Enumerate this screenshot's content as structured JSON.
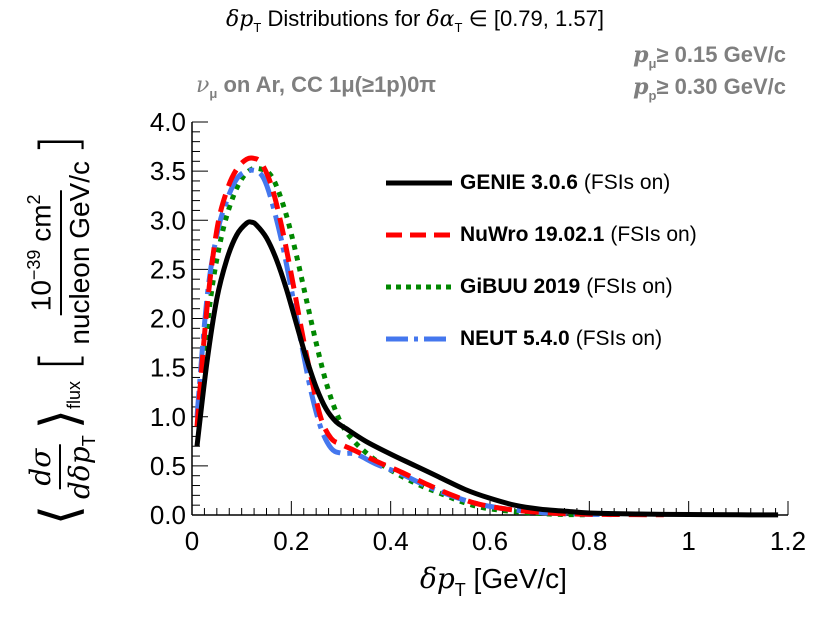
{
  "header": {
    "title_symbol": "δp",
    "title_subscript": "T",
    "title_text": " Distributions for ",
    "title_alpha_symbol": "δα",
    "title_alpha_subscript": "T",
    "title_range": " ∈  [0.79, 1.57]",
    "selection_nu": "ν",
    "selection_nu_sub": "μ",
    "selection_text": " on Ar, CC 1μ(≥1p)0π",
    "cut_mu_symbol": "p",
    "cut_mu_sub": "μ",
    "cut_mu_text": "≥ 0.15 GeV/c",
    "cut_p_symbol": "p",
    "cut_p_sub": "p",
    "cut_p_text": "≥ 0.30 GeV/c"
  },
  "chart_data": {
    "type": "line",
    "title": "δpT Distributions for δαT ∈ [0.79, 1.57]",
    "xlabel": "δpT [GeV/c]",
    "ylabel": "⟨dσ/dδpT⟩flux [10^-39 cm^2 / nucleon GeV/c]",
    "xlim": [
      0,
      1.2
    ],
    "ylim": [
      0,
      4.0
    ],
    "x_ticks": [
      "0",
      "0.2",
      "0.4",
      "0.6",
      "0.8",
      "1",
      "1.2"
    ],
    "y_ticks": [
      "0.0",
      "0.5",
      "1.0",
      "1.5",
      "2.0",
      "2.5",
      "3.0",
      "3.5",
      "4.0"
    ],
    "grid": false,
    "legend_position": "top-right",
    "series": [
      {
        "name": "GENIE 3.0.6",
        "suffix": "(FSIs on)",
        "color": "#000000",
        "style": "solid",
        "x": [
          0.01,
          0.03,
          0.05,
          0.07,
          0.09,
          0.11,
          0.12,
          0.13,
          0.15,
          0.17,
          0.19,
          0.21,
          0.23,
          0.25,
          0.27,
          0.29,
          0.31,
          0.35,
          0.4,
          0.45,
          0.5,
          0.55,
          0.6,
          0.65,
          0.7,
          0.75,
          0.8,
          0.9,
          1.0,
          1.1,
          1.18
        ],
        "y": [
          0.7,
          1.55,
          2.2,
          2.6,
          2.85,
          2.97,
          2.98,
          2.95,
          2.82,
          2.6,
          2.3,
          1.95,
          1.6,
          1.3,
          1.08,
          0.95,
          0.88,
          0.75,
          0.62,
          0.5,
          0.38,
          0.26,
          0.17,
          0.1,
          0.06,
          0.04,
          0.02,
          0.01,
          0.005,
          0.002,
          0.001
        ]
      },
      {
        "name": "NuWro 19.02.1",
        "suffix": "(FSIs on)",
        "color": "#ff0000",
        "style": "dashed",
        "x": [
          0.01,
          0.03,
          0.05,
          0.07,
          0.09,
          0.11,
          0.125,
          0.14,
          0.16,
          0.18,
          0.2,
          0.22,
          0.24,
          0.26,
          0.28,
          0.3,
          0.33,
          0.37,
          0.42,
          0.47,
          0.52,
          0.57,
          0.62,
          0.67,
          0.72,
          0.77,
          0.85,
          0.95
        ],
        "y": [
          0.9,
          2.1,
          2.9,
          3.3,
          3.52,
          3.62,
          3.63,
          3.58,
          3.35,
          2.95,
          2.45,
          1.9,
          1.4,
          0.98,
          0.78,
          0.72,
          0.65,
          0.55,
          0.44,
          0.32,
          0.21,
          0.12,
          0.07,
          0.04,
          0.02,
          0.01,
          0.005,
          0.002
        ]
      },
      {
        "name": "GiBUU 2019",
        "suffix": "(FSIs on)",
        "color": "#008800",
        "style": "dotted",
        "x": [
          0.02,
          0.04,
          0.06,
          0.08,
          0.1,
          0.12,
          0.14,
          0.155,
          0.17,
          0.19,
          0.21,
          0.23,
          0.25,
          0.27,
          0.29,
          0.31,
          0.34,
          0.38,
          0.42,
          0.46,
          0.5,
          0.54,
          0.58,
          0.62,
          0.66,
          0.7,
          0.75,
          0.8
        ],
        "y": [
          1.45,
          2.3,
          2.85,
          3.2,
          3.42,
          3.52,
          3.52,
          3.48,
          3.35,
          3.05,
          2.65,
          2.2,
          1.75,
          1.35,
          1.05,
          0.85,
          0.68,
          0.52,
          0.4,
          0.3,
          0.22,
          0.14,
          0.08,
          0.05,
          0.03,
          0.015,
          0.005,
          0.002
        ]
      },
      {
        "name": "NEUT 5.4.0",
        "suffix": "(FSIs on)",
        "color": "#4477ee",
        "style": "dashdot",
        "x": [
          0.01,
          0.03,
          0.05,
          0.07,
          0.09,
          0.11,
          0.13,
          0.145,
          0.16,
          0.18,
          0.2,
          0.22,
          0.24,
          0.26,
          0.28,
          0.3,
          0.33,
          0.37,
          0.42,
          0.47,
          0.52,
          0.57,
          0.62,
          0.67,
          0.72,
          0.77,
          0.85
        ],
        "y": [
          1.0,
          2.2,
          2.85,
          3.2,
          3.42,
          3.5,
          3.5,
          3.42,
          3.2,
          2.8,
          2.3,
          1.75,
          1.25,
          0.88,
          0.68,
          0.63,
          0.62,
          0.52,
          0.42,
          0.3,
          0.2,
          0.12,
          0.07,
          0.04,
          0.02,
          0.01,
          0.004
        ]
      }
    ]
  },
  "y_axis_label": {
    "left_angle": "⟨",
    "d_sigma": "dσ",
    "d_denominator": "dδp",
    "d_denominator_sub": "T",
    "right_angle": "⟩",
    "flux_sub": "flux",
    "unit_power": "10",
    "unit_exp": "−39",
    "unit_cm": " cm",
    "unit_cm_exp": "2",
    "unit_denominator": "nucleon GeV/c",
    "bracket_open": "[",
    "bracket_close": "]"
  },
  "x_axis_label": {
    "symbol": "δp",
    "subscript": "T",
    "unit": " [GeV/c]"
  }
}
